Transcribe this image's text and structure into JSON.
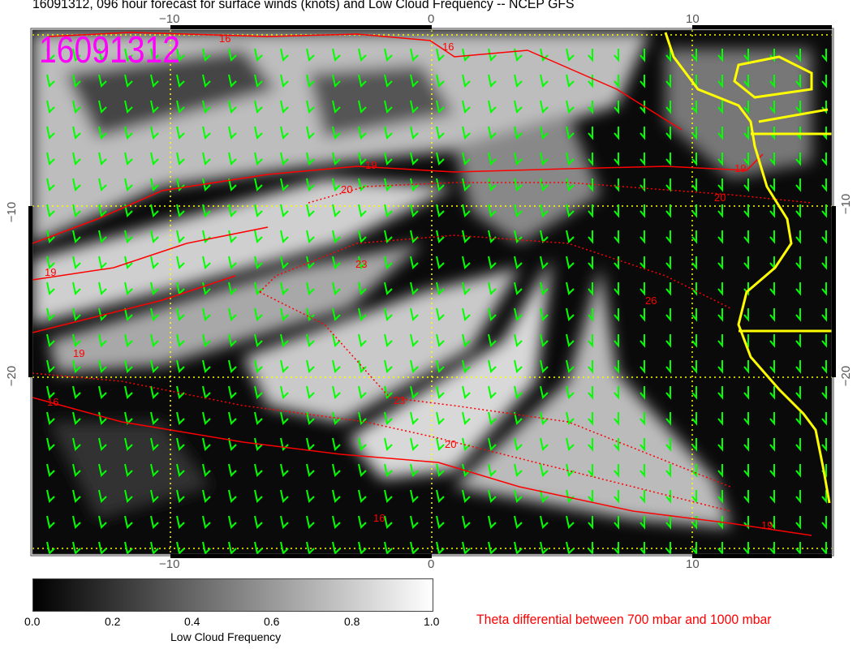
{
  "title": "16091312, 096 hour forecast for surface winds (knots) and Low Cloud Frequency -- NCEP GFS",
  "date_stamp": "16091312",
  "x_axis": {
    "top_ticks": [
      "−10",
      "0",
      "10"
    ],
    "bottom_ticks": [
      "−10",
      "0",
      "10"
    ]
  },
  "y_axis": {
    "left_ticks": [
      "−10",
      "−20"
    ],
    "right_ticks": [
      "−10",
      "−20"
    ]
  },
  "colorbar": {
    "title": "Low Cloud Frequency",
    "ticks": [
      "0.0",
      "0.2",
      "0.4",
      "0.6",
      "0.8",
      "1.0"
    ],
    "range": [
      0,
      1
    ]
  },
  "contour_legend": "Theta differential between 700 mbar and 1000 mbar",
  "contour_labels": [
    "16",
    "16",
    "19",
    "19",
    "19",
    "20",
    "20",
    "23",
    "23",
    "26",
    "19",
    "16",
    "16",
    "20",
    "19"
  ],
  "colors": {
    "winds": "#00ff00",
    "contours": "#ff0000",
    "coastline": "#ffff00",
    "grid": "#ffff00",
    "stamp": "#ff00ff"
  }
}
